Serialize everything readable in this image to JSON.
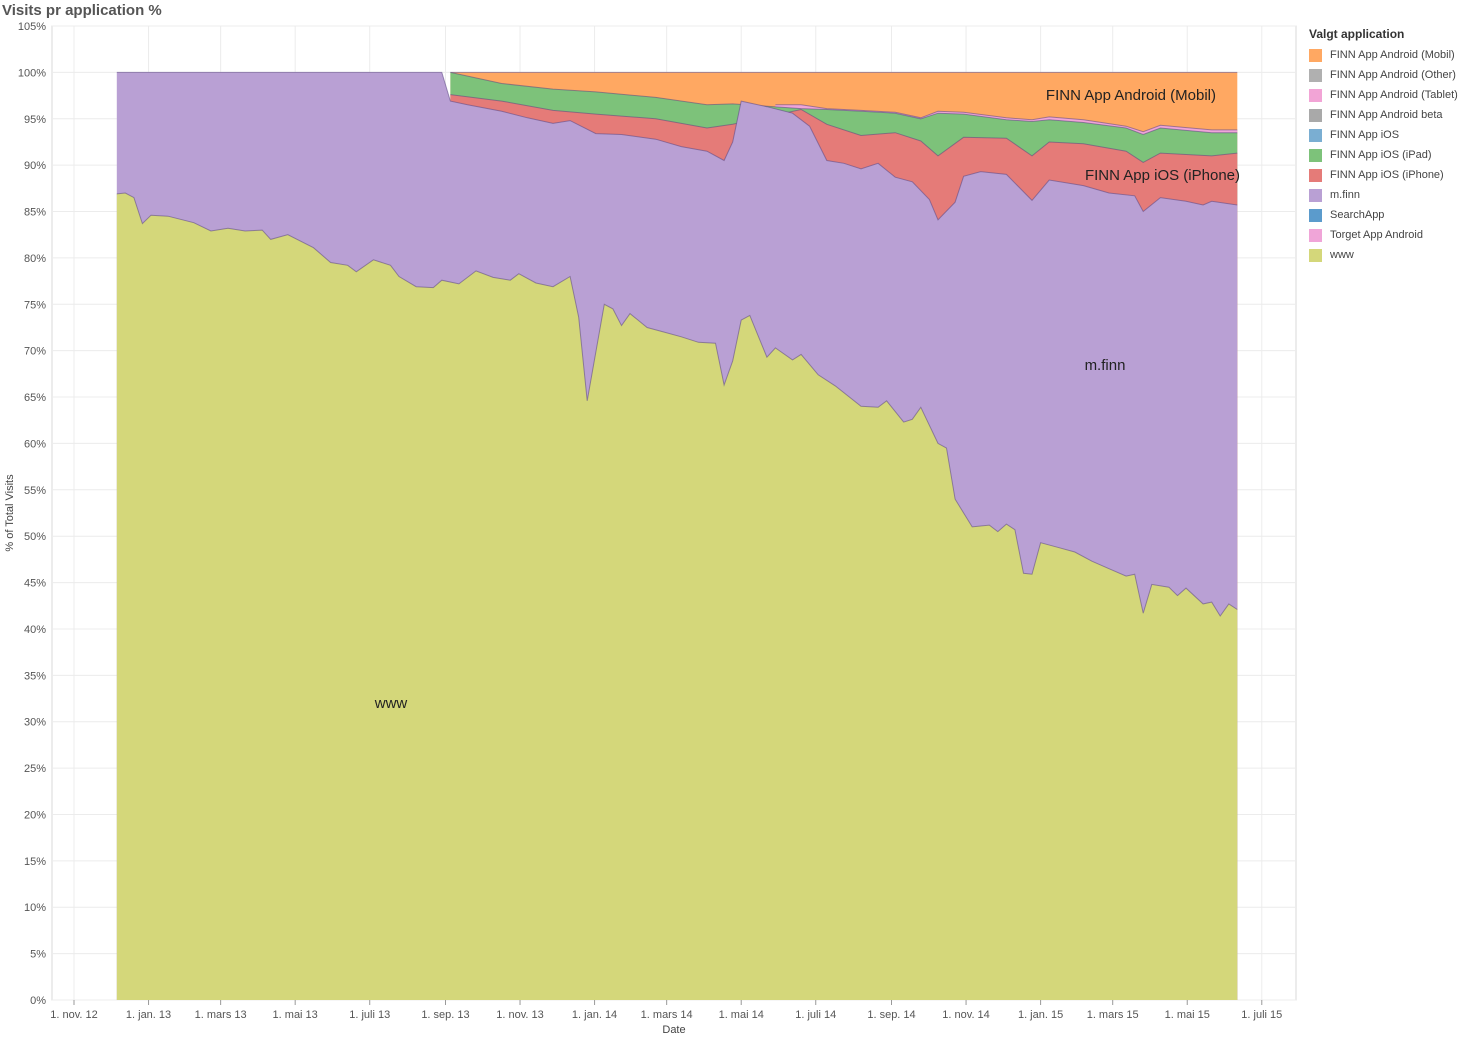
{
  "title": "Visits pr application %",
  "legend": {
    "title": "Valgt application",
    "items": [
      {
        "name": "FINN App Android (Mobil)",
        "color": "#ffa862"
      },
      {
        "name": "FINN App Android (Other)",
        "color": "#b0b0b0"
      },
      {
        "name": "FINN App Android (Tablet)",
        "color": "#f2a4d6"
      },
      {
        "name": "FINN App Android beta",
        "color": "#a9a9a9"
      },
      {
        "name": "FINN App iOS",
        "color": "#7aaed2"
      },
      {
        "name": "FINN App iOS (iPad)",
        "color": "#7dc27a"
      },
      {
        "name": "FINN App iOS (iPhone)",
        "color": "#e57b78"
      },
      {
        "name": "m.finn",
        "color": "#b9a0d4"
      },
      {
        "name": "SearchApp",
        "color": "#5b9bcc"
      },
      {
        "name": "Torget App Android",
        "color": "#f0a5d8"
      },
      {
        "name": "www",
        "color": "#d4d77a"
      }
    ]
  },
  "chart_data": {
    "type": "area",
    "stacked": true,
    "normalized": true,
    "xlabel": "Date",
    "ylabel": "% of Total Visits",
    "ylim": [
      0,
      105
    ],
    "yticks": [
      "0%",
      "5%",
      "10%",
      "15%",
      "20%",
      "25%",
      "30%",
      "35%",
      "40%",
      "45%",
      "50%",
      "55%",
      "60%",
      "65%",
      "70%",
      "75%",
      "80%",
      "85%",
      "90%",
      "95%",
      "100%",
      "105%"
    ],
    "xlim": [
      "2012-10-14",
      "2015-07-29"
    ],
    "xticks": [
      {
        "date": "2012-11-01",
        "label": "1. nov. 12"
      },
      {
        "date": "2013-01-01",
        "label": "1. jan. 13"
      },
      {
        "date": "2013-03-01",
        "label": "1. mars 13"
      },
      {
        "date": "2013-05-01",
        "label": "1. mai 13"
      },
      {
        "date": "2013-07-01",
        "label": "1. juli 13"
      },
      {
        "date": "2013-09-01",
        "label": "1. sep. 13"
      },
      {
        "date": "2013-11-01",
        "label": "1. nov. 13"
      },
      {
        "date": "2014-01-01",
        "label": "1. jan. 14"
      },
      {
        "date": "2014-03-01",
        "label": "1. mars 14"
      },
      {
        "date": "2014-05-01",
        "label": "1. mai 14"
      },
      {
        "date": "2014-07-01",
        "label": "1. juli 14"
      },
      {
        "date": "2014-09-01",
        "label": "1. sep. 14"
      },
      {
        "date": "2014-11-01",
        "label": "1. nov. 14"
      },
      {
        "date": "2015-01-01",
        "label": "1. jan. 15"
      },
      {
        "date": "2015-03-01",
        "label": "1. mars 15"
      },
      {
        "date": "2015-05-01",
        "label": "1. mai 15"
      },
      {
        "date": "2015-07-01",
        "label": "1. juli 15"
      }
    ],
    "grid": true,
    "legend_position": "right",
    "annotations": [
      {
        "text": "www",
        "series": "www"
      },
      {
        "text": "m.finn",
        "series": "m.finn"
      },
      {
        "text": "FINN App iOS (iPhone)",
        "series": "FINN App iOS (iPhone)"
      },
      {
        "text": "FINN App Android (Mobil)",
        "series": "FINN App Android (Mobil)"
      }
    ],
    "series": [
      {
        "name": "www",
        "color": "#d4d77a",
        "points": [
          [
            "2012-12-06",
            86.9
          ],
          [
            "2012-12-13",
            87.0
          ],
          [
            "2012-12-20",
            86.5
          ],
          [
            "2012-12-27",
            83.7
          ],
          [
            "2013-01-03",
            84.6
          ],
          [
            "2013-01-17",
            84.5
          ],
          [
            "2013-02-07",
            83.8
          ],
          [
            "2013-02-21",
            82.9
          ],
          [
            "2013-03-07",
            83.2
          ],
          [
            "2013-03-21",
            82.9
          ],
          [
            "2013-04-04",
            83.0
          ],
          [
            "2013-04-11",
            82.0
          ],
          [
            "2013-04-25",
            82.5
          ],
          [
            "2013-05-16",
            81.1
          ],
          [
            "2013-05-30",
            79.5
          ],
          [
            "2013-06-13",
            79.2
          ],
          [
            "2013-06-20",
            78.5
          ],
          [
            "2013-07-04",
            79.8
          ],
          [
            "2013-07-18",
            79.2
          ],
          [
            "2013-07-25",
            78.0
          ],
          [
            "2013-08-08",
            76.9
          ],
          [
            "2013-08-22",
            76.8
          ],
          [
            "2013-08-29",
            77.6
          ],
          [
            "2013-09-12",
            77.2
          ],
          [
            "2013-09-26",
            78.6
          ],
          [
            "2013-10-10",
            77.9
          ],
          [
            "2013-10-24",
            77.6
          ],
          [
            "2013-10-31",
            78.3
          ],
          [
            "2013-11-14",
            77.3
          ],
          [
            "2013-11-28",
            76.9
          ],
          [
            "2013-12-12",
            78.0
          ],
          [
            "2013-12-19",
            73.6
          ],
          [
            "2013-12-26",
            64.6
          ],
          [
            "2014-01-09",
            75.0
          ],
          [
            "2014-01-16",
            74.5
          ],
          [
            "2014-01-23",
            72.7
          ],
          [
            "2014-01-30",
            74.0
          ],
          [
            "2014-02-13",
            72.5
          ],
          [
            "2014-02-27",
            72.0
          ],
          [
            "2014-03-13",
            71.5
          ],
          [
            "2014-03-27",
            70.9
          ],
          [
            "2014-04-10",
            70.8
          ],
          [
            "2014-04-17",
            66.3
          ],
          [
            "2014-04-24",
            68.9
          ],
          [
            "2014-05-01",
            73.3
          ],
          [
            "2014-05-08",
            73.8
          ],
          [
            "2014-05-22",
            69.3
          ],
          [
            "2014-05-29",
            70.3
          ],
          [
            "2014-06-12",
            69.0
          ],
          [
            "2014-06-19",
            69.6
          ],
          [
            "2014-07-03",
            67.4
          ],
          [
            "2014-07-17",
            66.2
          ],
          [
            "2014-08-07",
            64.0
          ],
          [
            "2014-08-21",
            63.9
          ],
          [
            "2014-08-28",
            64.6
          ],
          [
            "2014-09-11",
            62.3
          ],
          [
            "2014-09-18",
            62.6
          ],
          [
            "2014-09-25",
            63.9
          ],
          [
            "2014-10-09",
            60.0
          ],
          [
            "2014-10-16",
            59.5
          ],
          [
            "2014-10-23",
            54.0
          ],
          [
            "2014-11-06",
            51.0
          ],
          [
            "2014-11-20",
            51.2
          ],
          [
            "2014-11-27",
            50.5
          ],
          [
            "2014-12-04",
            51.3
          ],
          [
            "2014-12-11",
            50.7
          ],
          [
            "2014-12-18",
            46.0
          ],
          [
            "2014-12-25",
            45.9
          ],
          [
            "2015-01-01",
            49.3
          ],
          [
            "2015-01-15",
            48.8
          ],
          [
            "2015-01-29",
            48.3
          ],
          [
            "2015-02-12",
            47.3
          ],
          [
            "2015-02-26",
            46.5
          ],
          [
            "2015-03-12",
            45.7
          ],
          [
            "2015-03-19",
            45.9
          ],
          [
            "2015-03-26",
            41.7
          ],
          [
            "2015-04-02",
            44.8
          ],
          [
            "2015-04-16",
            44.5
          ],
          [
            "2015-04-23",
            43.6
          ],
          [
            "2015-04-30",
            44.4
          ],
          [
            "2015-05-14",
            42.7
          ],
          [
            "2015-05-21",
            42.9
          ],
          [
            "2015-05-28",
            41.4
          ],
          [
            "2015-06-04",
            42.7
          ],
          [
            "2015-06-11",
            42.1
          ]
        ]
      },
      {
        "name": "m.finn",
        "color": "#b9a0d4",
        "points": [
          [
            "2012-12-06",
            100.0
          ],
          [
            "2013-08-29",
            100.0
          ],
          [
            "2013-09-05",
            96.9
          ],
          [
            "2013-09-19",
            96.5
          ],
          [
            "2013-10-17",
            95.8
          ],
          [
            "2013-11-07",
            95.1
          ],
          [
            "2013-11-28",
            94.5
          ],
          [
            "2013-12-12",
            94.8
          ],
          [
            "2014-01-02",
            93.4
          ],
          [
            "2014-01-23",
            93.3
          ],
          [
            "2014-02-20",
            92.8
          ],
          [
            "2014-03-13",
            92.0
          ],
          [
            "2014-04-03",
            91.5
          ],
          [
            "2014-04-17",
            90.5
          ],
          [
            "2014-04-24",
            92.5
          ],
          [
            "2014-05-01",
            96.9
          ],
          [
            "2014-05-22",
            96.3
          ],
          [
            "2014-06-12",
            95.6
          ],
          [
            "2014-06-26",
            94.2
          ],
          [
            "2014-07-10",
            90.5
          ],
          [
            "2014-07-24",
            90.2
          ],
          [
            "2014-08-07",
            89.6
          ],
          [
            "2014-08-21",
            90.2
          ],
          [
            "2014-09-04",
            88.7
          ],
          [
            "2014-09-18",
            88.2
          ],
          [
            "2014-10-02",
            86.3
          ],
          [
            "2014-10-09",
            84.1
          ],
          [
            "2014-10-23",
            86.0
          ],
          [
            "2014-10-30",
            88.8
          ],
          [
            "2014-11-13",
            89.3
          ],
          [
            "2014-12-04",
            89.0
          ],
          [
            "2014-12-25",
            86.2
          ],
          [
            "2015-01-08",
            88.4
          ],
          [
            "2015-02-05",
            87.8
          ],
          [
            "2015-02-26",
            87.0
          ],
          [
            "2015-03-19",
            86.7
          ],
          [
            "2015-03-26",
            85.0
          ],
          [
            "2015-04-09",
            86.5
          ],
          [
            "2015-04-30",
            86.1
          ],
          [
            "2015-05-14",
            85.7
          ],
          [
            "2015-05-21",
            86.1
          ],
          [
            "2015-06-11",
            85.7
          ]
        ]
      },
      {
        "name": "FINN App iOS (iPhone)",
        "color": "#e57b78",
        "points": [
          [
            "2013-09-05",
            97.6
          ],
          [
            "2013-10-17",
            96.9
          ],
          [
            "2013-11-28",
            95.9
          ],
          [
            "2014-01-02",
            95.5
          ],
          [
            "2014-02-20",
            95.0
          ],
          [
            "2014-04-03",
            94.0
          ],
          [
            "2014-04-24",
            94.4
          ],
          [
            "2014-06-19",
            96.0
          ],
          [
            "2014-07-10",
            94.4
          ],
          [
            "2014-08-07",
            93.2
          ],
          [
            "2014-09-04",
            93.5
          ],
          [
            "2014-09-25",
            92.6
          ],
          [
            "2014-10-09",
            91.0
          ],
          [
            "2014-10-30",
            93.0
          ],
          [
            "2014-12-04",
            92.9
          ],
          [
            "2014-12-25",
            91.0
          ],
          [
            "2015-01-08",
            92.5
          ],
          [
            "2015-02-05",
            92.3
          ],
          [
            "2015-03-12",
            91.5
          ],
          [
            "2015-03-26",
            90.3
          ],
          [
            "2015-04-09",
            91.3
          ],
          [
            "2015-05-21",
            91.0
          ],
          [
            "2015-06-11",
            91.3
          ]
        ]
      },
      {
        "name": "FINN App iOS (iPad)",
        "color": "#7dc27a",
        "points": [
          [
            "2013-09-05",
            100.0
          ],
          [
            "2013-10-17",
            98.8
          ],
          [
            "2013-11-28",
            98.2
          ],
          [
            "2014-01-02",
            97.9
          ],
          [
            "2014-02-20",
            97.3
          ],
          [
            "2014-04-03",
            96.5
          ],
          [
            "2014-04-24",
            96.6
          ],
          [
            "2014-06-19",
            96.1
          ],
          [
            "2014-07-10",
            96.0
          ],
          [
            "2014-08-07",
            95.8
          ],
          [
            "2014-09-04",
            95.6
          ],
          [
            "2014-09-25",
            95.0
          ],
          [
            "2014-10-09",
            95.6
          ],
          [
            "2014-10-30",
            95.5
          ],
          [
            "2014-12-04",
            94.9
          ],
          [
            "2014-12-25",
            94.7
          ],
          [
            "2015-01-08",
            94.9
          ],
          [
            "2015-02-05",
            94.6
          ],
          [
            "2015-03-12",
            94.0
          ],
          [
            "2015-03-26",
            93.3
          ],
          [
            "2015-04-09",
            94.0
          ],
          [
            "2015-05-21",
            93.5
          ],
          [
            "2015-06-11",
            93.5
          ]
        ]
      },
      {
        "name": "Torget App Android",
        "color": "#f0a5d8",
        "points": [
          [
            "2014-05-29",
            96.5
          ],
          [
            "2014-06-19",
            96.5
          ],
          [
            "2014-07-10",
            96.1
          ],
          [
            "2014-08-07",
            95.9
          ],
          [
            "2014-09-04",
            95.7
          ],
          [
            "2014-09-25",
            95.1
          ],
          [
            "2014-10-09",
            95.8
          ],
          [
            "2014-10-30",
            95.7
          ],
          [
            "2014-12-04",
            95.1
          ],
          [
            "2014-12-25",
            94.9
          ],
          [
            "2015-01-08",
            95.2
          ],
          [
            "2015-02-05",
            94.9
          ],
          [
            "2015-03-12",
            94.2
          ],
          [
            "2015-03-26",
            93.6
          ],
          [
            "2015-04-09",
            94.3
          ],
          [
            "2015-05-21",
            93.8
          ],
          [
            "2015-06-11",
            93.8
          ]
        ]
      },
      {
        "name": "FINN App Android (Mobil)",
        "color": "#ffa862",
        "points": [
          [
            "2013-09-05",
            100.0
          ],
          [
            "2015-06-11",
            100.0
          ]
        ]
      }
    ]
  }
}
